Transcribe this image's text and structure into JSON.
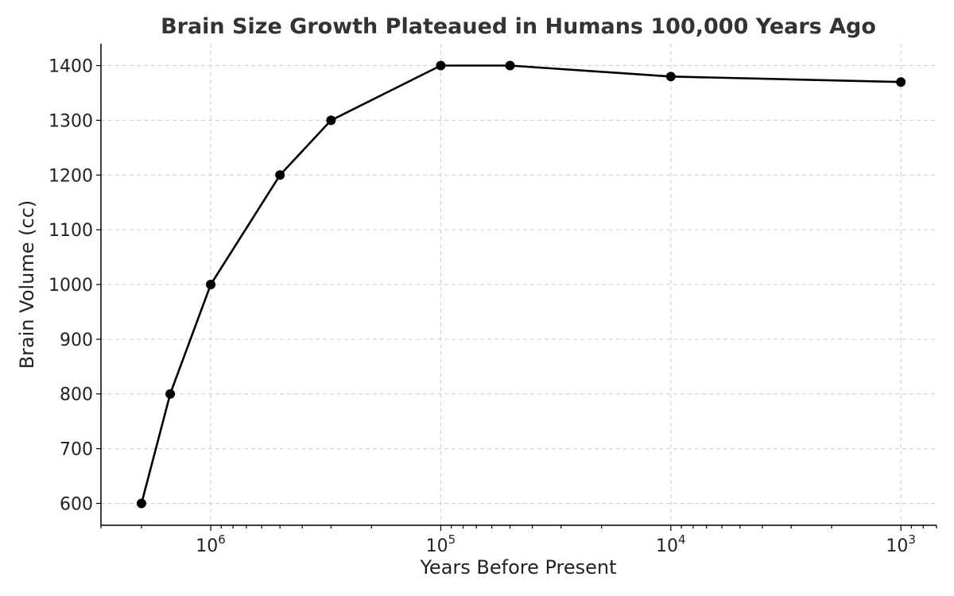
{
  "chart_data": {
    "type": "line",
    "title": "Brain Size Growth Plateaued in Humans 100,000 Years Ago",
    "xlabel": "Years Before Present",
    "ylabel": "Brain Volume (cc)",
    "x_scale": "log",
    "x_reversed": true,
    "xlim": [
      3000000,
      700
    ],
    "ylim": [
      560,
      1440
    ],
    "grid": true,
    "x_tick_labels": [
      {
        "value": 1000000,
        "base": "10",
        "exp": "6"
      },
      {
        "value": 100000,
        "base": "10",
        "exp": "5"
      },
      {
        "value": 10000,
        "base": "10",
        "exp": "4"
      },
      {
        "value": 1000,
        "base": "10",
        "exp": "3"
      }
    ],
    "y_ticks": [
      600,
      700,
      800,
      900,
      1000,
      1100,
      1200,
      1300,
      1400
    ],
    "series": [
      {
        "color": "#000000",
        "x": [
          2000000,
          1500000,
          1000000,
          500000,
          300000,
          100000,
          50000,
          10000,
          1000
        ],
        "y": [
          600,
          800,
          1000,
          1200,
          1300,
          1400,
          1400,
          1380,
          1370
        ]
      }
    ]
  }
}
